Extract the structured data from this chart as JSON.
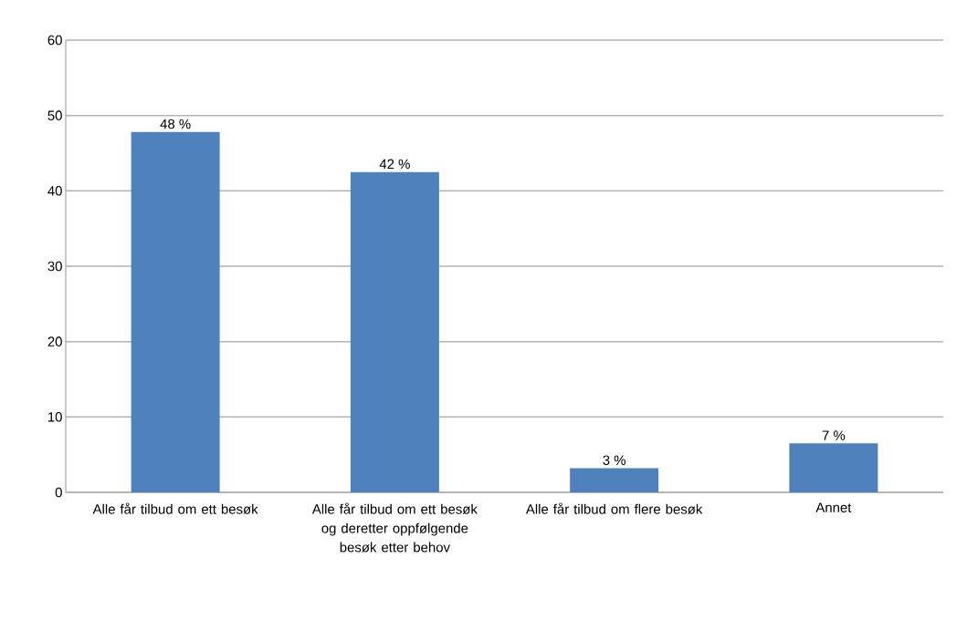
{
  "chart_data": {
    "type": "bar",
    "categories": [
      "Alle får tilbud om ett besøk",
      "Alle får tilbud om ett besøk og deretter oppfølgende besøk etter behov",
      "Alle får tilbud om flere besøk",
      "Annet"
    ],
    "values": [
      47.8,
      42.5,
      3.2,
      6.5
    ],
    "value_labels": [
      "48 %",
      "42 %",
      "3 %",
      "7 %"
    ],
    "color": "#4f81bd",
    "ylim": [
      0,
      60
    ],
    "yticks": [
      0,
      10,
      20,
      30,
      40,
      50,
      60
    ],
    "grid": "y"
  }
}
